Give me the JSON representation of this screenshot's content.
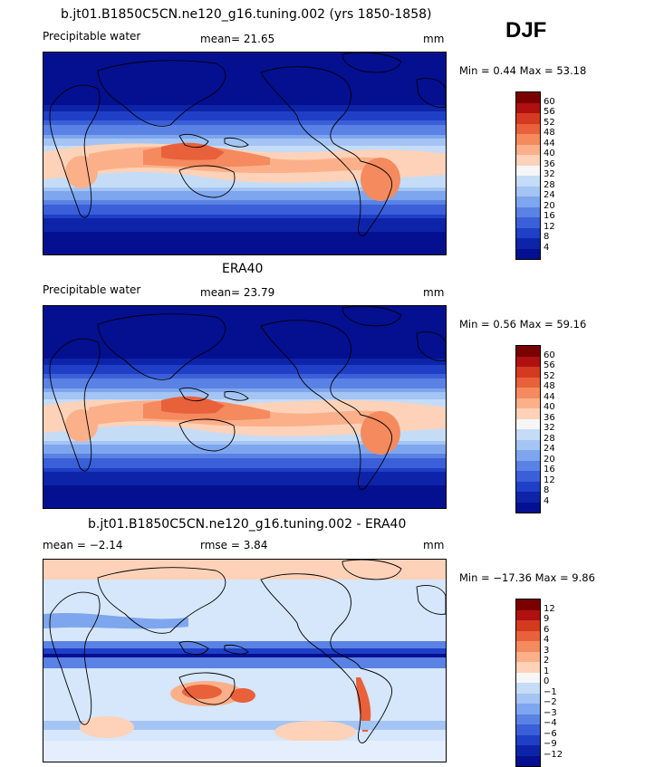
{
  "season": "DJF",
  "panels": [
    {
      "title": "b.jt01.B1850C5CN.ne120_g16.tuning.002 (yrs 1850-1858)",
      "left_label": "Precipitable water",
      "center_label": "mean=  21.65",
      "units": "mm",
      "minmax": "Min =    0.44  Max =   53.18",
      "colorbar": {
        "labels": [
          "60",
          "56",
          "52",
          "48",
          "44",
          "40",
          "36",
          "32",
          "28",
          "24",
          "20",
          "16",
          "12",
          "8",
          "4"
        ],
        "colors": [
          "#7a0000",
          "#b01010",
          "#d43a20",
          "#e8613a",
          "#f48a5e",
          "#fbb08a",
          "#fdd2b8",
          "#f6f6f6",
          "#c5dcf7",
          "#a4c4f4",
          "#7ea6ee",
          "#5a82e4",
          "#3a5fd8",
          "#1f3fc6",
          "#0d24a8",
          "#041090"
        ]
      }
    },
    {
      "title": "ERA40",
      "left_label": "Precipitable water",
      "center_label": "mean=  23.79",
      "units": "mm",
      "minmax": "Min =    0.56  Max =   59.16",
      "colorbar": {
        "labels": [
          "60",
          "56",
          "52",
          "48",
          "44",
          "40",
          "36",
          "32",
          "28",
          "24",
          "20",
          "16",
          "12",
          "8",
          "4"
        ],
        "colors": [
          "#7a0000",
          "#b01010",
          "#d43a20",
          "#e8613a",
          "#f48a5e",
          "#fbb08a",
          "#fdd2b8",
          "#f6f6f6",
          "#c5dcf7",
          "#a4c4f4",
          "#7ea6ee",
          "#5a82e4",
          "#3a5fd8",
          "#1f3fc6",
          "#0d24a8",
          "#041090"
        ]
      }
    },
    {
      "title": "b.jt01.B1850C5CN.ne120_g16.tuning.002 - ERA40",
      "left_label": "mean =   −2.14",
      "center_label": "rmse =    3.84",
      "units": "mm",
      "minmax": "Min = −17.36  Max =    9.86",
      "colorbar": {
        "labels": [
          "12",
          "9",
          "6",
          "4",
          "3",
          "2",
          "1",
          "0",
          "−1",
          "−2",
          "−3",
          "−4",
          "−6",
          "−9",
          "−12"
        ],
        "colors": [
          "#7a0000",
          "#b01010",
          "#d43a20",
          "#e8613a",
          "#f48a5e",
          "#fbb08a",
          "#fdd2b8",
          "#f6f6f6",
          "#c5dcf7",
          "#a4c4f4",
          "#7ea6ee",
          "#5a82e4",
          "#3a5fd8",
          "#1f3fc6",
          "#0d24a8",
          "#041090"
        ]
      }
    }
  ]
}
